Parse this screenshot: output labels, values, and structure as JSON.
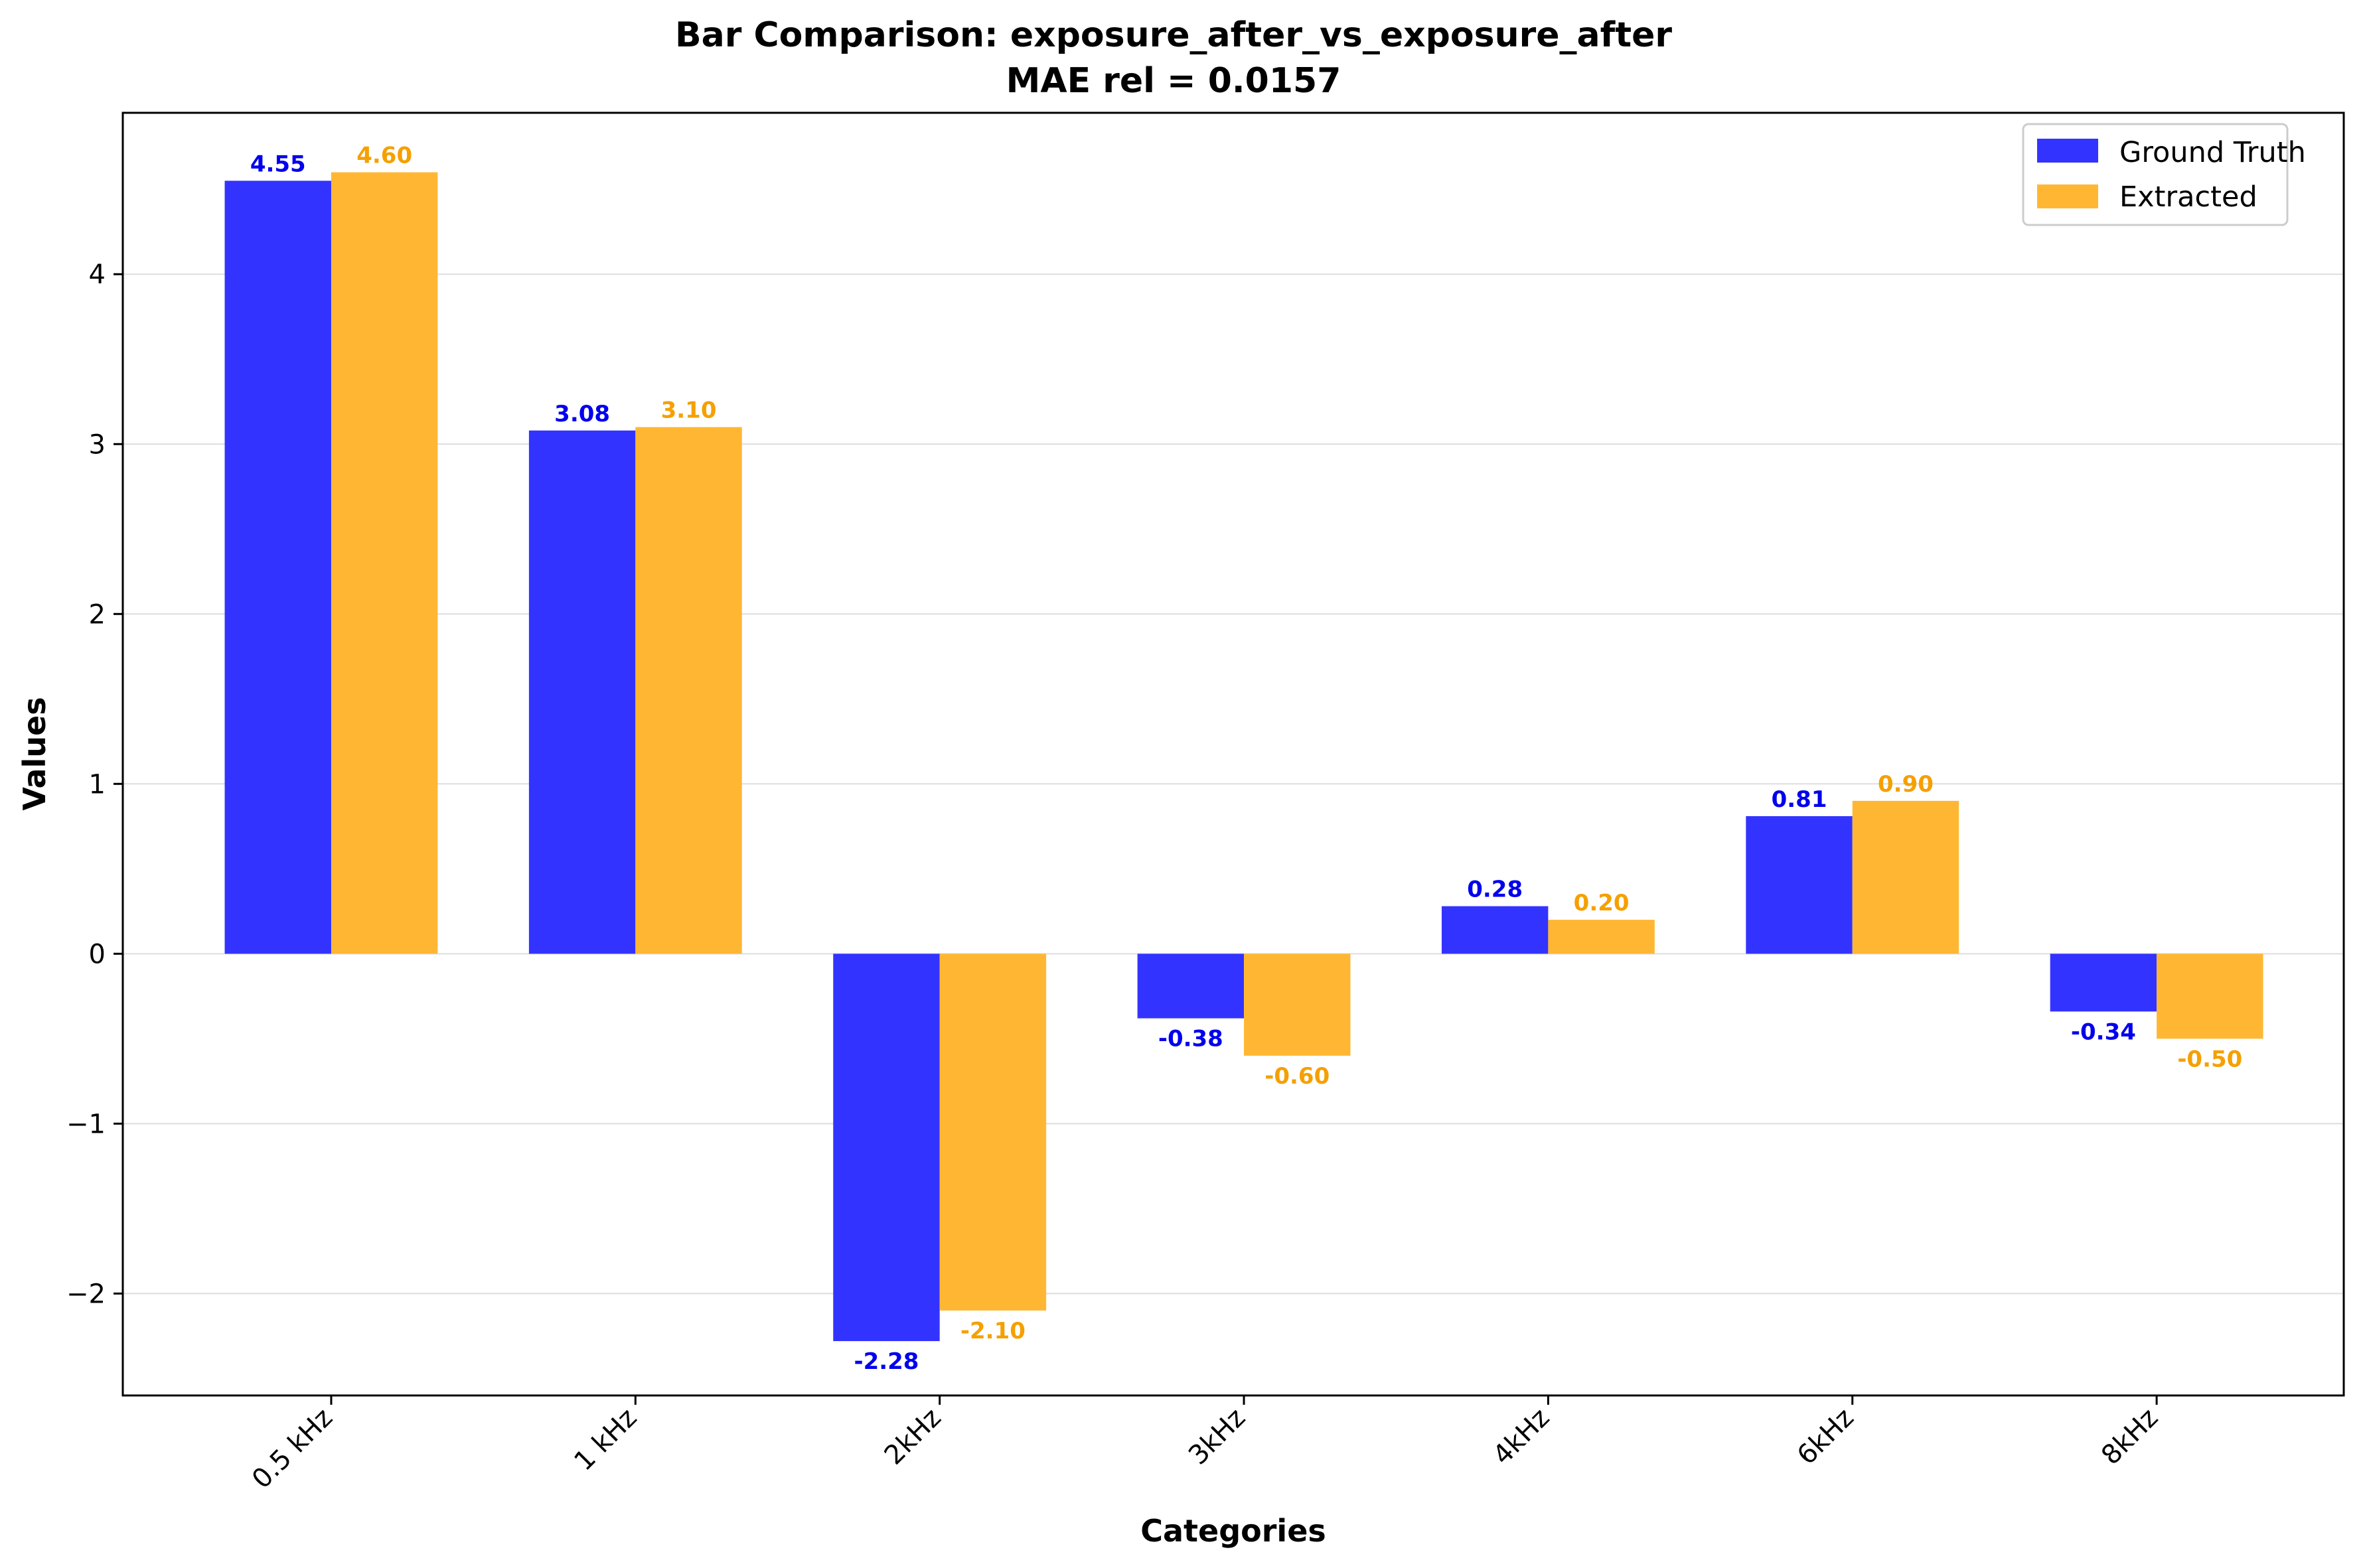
{
  "chart_data": {
    "type": "bar",
    "title": "Bar Comparison: exposure_after_vs_exposure_after",
    "subtitle": "MAE rel = 0.0157",
    "xlabel": "Categories",
    "ylabel": "Values",
    "categories": [
      "0.5 kHz",
      "1 kHz",
      "2kHz",
      "3kHz",
      "4kHz",
      "6kHz",
      "8kHz"
    ],
    "series": [
      {
        "name": "Ground Truth",
        "color": "#3333ff",
        "label_color": "#0000ee",
        "values": [
          4.55,
          3.08,
          -2.28,
          -0.38,
          0.28,
          0.81,
          -0.34
        ],
        "labels": [
          "4.55",
          "3.08",
          "-2.28",
          "-0.38",
          "0.28",
          "0.81",
          "-0.34"
        ]
      },
      {
        "name": "Extracted",
        "color": "#ffb733",
        "label_color": "#f5a000",
        "values": [
          4.6,
          3.1,
          -2.1,
          -0.6,
          0.2,
          0.9,
          -0.5
        ],
        "labels": [
          "4.60",
          "3.10",
          "-2.10",
          "-0.60",
          "0.20",
          "0.90",
          "-0.50"
        ]
      }
    ],
    "ylim": [
      -2.6,
      4.95
    ],
    "yticks": [
      -2,
      -1,
      0,
      1,
      2,
      3,
      4
    ],
    "ytick_labels": [
      "−2",
      "−1",
      "0",
      "1",
      "2",
      "3",
      "4"
    ],
    "grid": true,
    "legend_position": "top-right"
  }
}
